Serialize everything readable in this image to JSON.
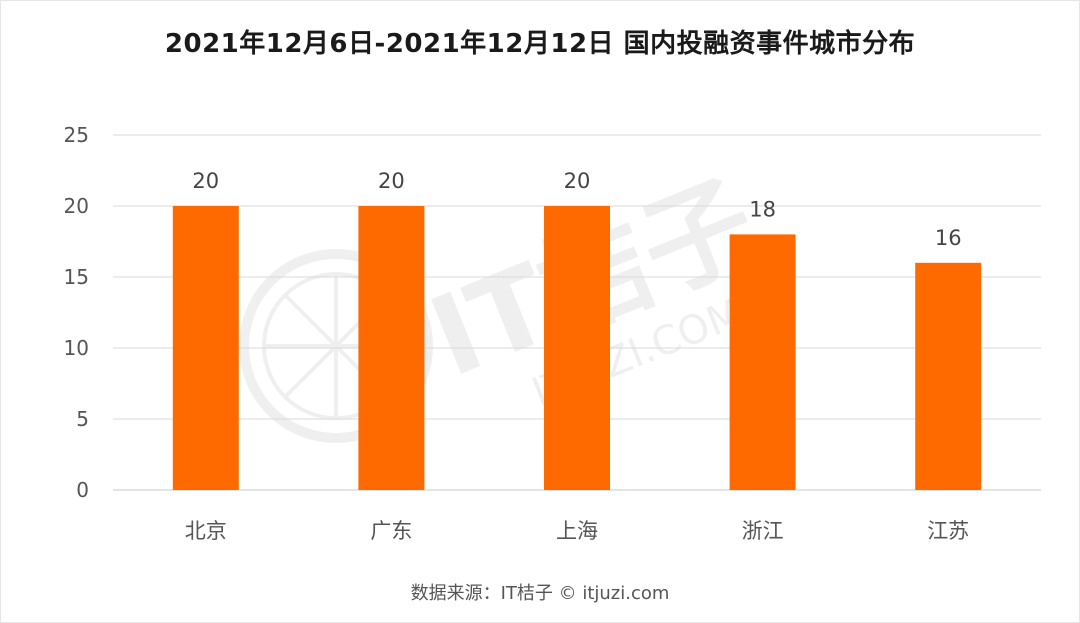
{
  "chart_data": {
    "type": "bar",
    "title": "2021年12月6日-2021年12月12日 国内投融资事件城市分布",
    "categories": [
      "北京",
      "广东",
      "上海",
      "浙江",
      "江苏"
    ],
    "values": [
      20,
      20,
      20,
      18,
      16
    ],
    "data_labels": [
      "20",
      "20",
      "20",
      "18",
      "16"
    ],
    "ylim": [
      0,
      25
    ],
    "yticks": [
      0,
      5,
      10,
      15,
      20,
      25
    ],
    "ytick_labels": [
      "0",
      "5",
      "10",
      "15",
      "20",
      "25"
    ],
    "xlabel": "",
    "ylabel": "",
    "grid": true,
    "bar_color": "#ff6a00",
    "legend": "none"
  },
  "watermark": {
    "text": "IT桔子",
    "subtext": "ITJUZI.COM"
  },
  "source": "数据来源：IT桔子 © itjuzi.com"
}
